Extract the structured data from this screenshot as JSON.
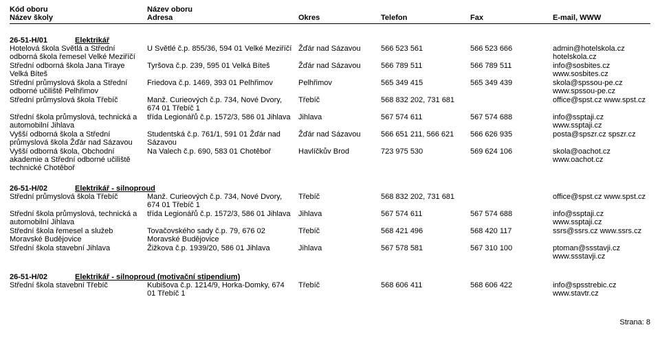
{
  "header": {
    "row1": {
      "c1": "Kód oboru",
      "c2": "Název oboru",
      "c3": "",
      "c4": "",
      "c5": "",
      "c6": ""
    },
    "row2": {
      "c1": "Název školy",
      "c2": "Adresa",
      "c3": "Okres",
      "c4": "Telefon",
      "c5": "Fax",
      "c6": "E-mail, WWW"
    }
  },
  "sections": [
    {
      "code": "26-51-H/01",
      "name": "Elektrikář",
      "rows": [
        {
          "school": "Hotelová škola Světlá a Střední odborná škola řemesel Velké Meziříčí",
          "addr": "U Světlé č.p. 855/36, 594 01 Velké Meziříčí",
          "district": "Žďár nad Sázavou",
          "tel": "566 523 561",
          "fax": "566 523 666",
          "web": "admin@hotelskola.cz hotelskola.cz"
        },
        {
          "school": "Střední odborná škola Jana Tiraye Velká Bíteš",
          "addr": "Tyršova č.p. 239, 595 01 Velká Bíteš",
          "district": "Žďár nad Sázavou",
          "tel": "566 789 511",
          "fax": "566 789 511",
          "web": "info@sosbites.cz www.sosbites.cz"
        },
        {
          "school": "Střední průmyslová škola a Střední odborné učiliště Pelhřimov",
          "addr": "Friedova č.p. 1469, 393 01 Pelhřimov",
          "district": "Pelhřimov",
          "tel": "565 349 415",
          "fax": "565 349 439",
          "web": "skola@spssou-pe.cz www.spssou-pe.cz"
        },
        {
          "school": "Střední průmyslová škola Třebíč",
          "addr": "Manž. Curieových č.p. 734, Nové Dvory, 674 01 Třebíč 1",
          "district": "Třebíč",
          "tel": "568 832 202, 731 681",
          "fax": "",
          "web": "office@spst.cz www.spst.cz"
        },
        {
          "school": "Střední škola průmyslová, technická a automobilní Jihlava",
          "addr": "třída Legionářů č.p. 1572/3, 586 01 Jihlava",
          "district": "Jihlava",
          "tel": "567 574 611",
          "fax": "567 574 688",
          "web": "info@ssptaji.cz www.ssptaji.cz"
        },
        {
          "school": "Vyšší odborná škola a Střední průmyslová škola Žďár nad Sázavou",
          "addr": "Studentská č.p. 761/1, 591 01 Žďár nad Sázavou",
          "district": "Žďár nad Sázavou",
          "tel": "566 651 211, 566 621",
          "fax": "566 626 935",
          "web": "posta@spszr.cz spszr.cz"
        },
        {
          "school": "Vyšší odborná škola, Obchodní akademie a Střední odborné učiliště technické Chotěboř",
          "addr": "Na Valech č.p. 690, 583 01 Chotěboř",
          "district": "Havlíčkův Brod",
          "tel": "723 975 530",
          "fax": "569 624 106",
          "web": "skola@oachot.cz www.oachot.cz"
        }
      ]
    },
    {
      "code": "26-51-H/02",
      "name": "Elektrikář - silnoproud",
      "rows": [
        {
          "school": "Střední průmyslová škola Třebíč",
          "addr": "Manž. Curieových č.p. 734, Nové Dvory, 674 01 Třebíč 1",
          "district": "Třebíč",
          "tel": "568 832 202, 731 681",
          "fax": "",
          "web": "office@spst.cz www.spst.cz"
        },
        {
          "school": "Střední škola průmyslová, technická a automobilní Jihlava",
          "addr": "třída Legionářů č.p. 1572/3, 586 01 Jihlava",
          "district": "Jihlava",
          "tel": "567 574 611",
          "fax": "567 574 688",
          "web": "info@ssptaji.cz www.ssptaji.cz"
        },
        {
          "school": "Střední škola řemesel a služeb Moravské Budějovice",
          "addr": "Tovačovského sady č.p. 79, 676 02 Moravské Budějovice",
          "district": "Třebíč",
          "tel": "568 421 496",
          "fax": "568 420 117",
          "web": "ssrs@ssrs.cz www.ssrs.cz"
        },
        {
          "school": "Střední škola stavební Jihlava",
          "addr": "Žižkova č.p. 1939/20, 586 01 Jihlava",
          "district": "Jihlava",
          "tel": "567 578 581",
          "fax": "567 310 100",
          "web": "ptoman@ssstavji.cz www.ssstavji.cz"
        }
      ]
    },
    {
      "code": "26-51-H/02",
      "name": "Elektrikář - silnoproud (motivační stipendium)",
      "rows": [
        {
          "school": "Střední škola stavební Třebíč",
          "addr": "Kubišova č.p. 1214/9, Horka-Domky, 674 01 Třebíč 1",
          "district": "Třebíč",
          "tel": "568 606 411",
          "fax": "568 606 422",
          "web": "info@spsstrebic.cz www.stavtr.cz"
        }
      ]
    }
  ],
  "footer": {
    "page_label": "Strana: 8"
  }
}
